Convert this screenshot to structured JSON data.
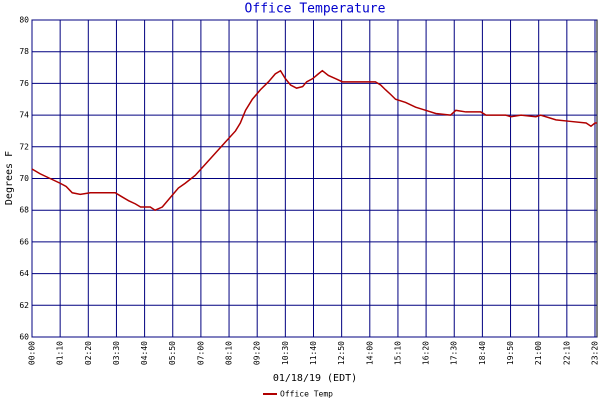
{
  "chart_data": {
    "type": "line",
    "title": "Office Temperature",
    "x_label": "01/18/19 (EDT)",
    "y_label": "Degrees F",
    "x": [
      0,
      20,
      45,
      70,
      85,
      100,
      120,
      145,
      207,
      220,
      240,
      257,
      270,
      294,
      306,
      324,
      344,
      364,
      381,
      406,
      431,
      456,
      481,
      506,
      518,
      531,
      548,
      568,
      588,
      605,
      618,
      630,
      643,
      658,
      673,
      683,
      698,
      712,
      722,
      737,
      755,
      772,
      792,
      854,
      867,
      879,
      892,
      904,
      929,
      954,
      979,
      1004,
      1041,
      1054,
      1079,
      1116,
      1129,
      1178,
      1191,
      1216,
      1253,
      1265,
      1303,
      1340,
      1378,
      1390,
      1400,
      1405
    ],
    "series": [
      {
        "name": "Office Temp",
        "color": "#b00000",
        "values": [
          70.6,
          70.3,
          70.0,
          69.7,
          69.5,
          69.1,
          69.0,
          69.1,
          69.1,
          68.9,
          68.6,
          68.4,
          68.2,
          68.2,
          68.0,
          68.2,
          68.8,
          69.4,
          69.7,
          70.2,
          70.9,
          71.6,
          72.3,
          73.0,
          73.5,
          74.3,
          75.0,
          75.6,
          76.1,
          76.6,
          76.8,
          76.3,
          75.9,
          75.7,
          75.8,
          76.1,
          76.3,
          76.6,
          76.8,
          76.5,
          76.3,
          76.1,
          76.1,
          76.1,
          75.9,
          75.6,
          75.3,
          75.0,
          74.8,
          74.5,
          74.3,
          74.1,
          74.0,
          74.3,
          74.2,
          74.2,
          74.0,
          74.0,
          73.9,
          74.0,
          73.9,
          74.0,
          73.7,
          73.6,
          73.5,
          73.3,
          73.5,
          73.5
        ]
      }
    ],
    "xlim": [
      0,
      1405
    ],
    "ylim": [
      60,
      80
    ],
    "xticks": [
      {
        "value": 0,
        "label": "00:00"
      },
      {
        "value": 70,
        "label": "01:10"
      },
      {
        "value": 140,
        "label": "02:20"
      },
      {
        "value": 210,
        "label": "03:30"
      },
      {
        "value": 280,
        "label": "04:40"
      },
      {
        "value": 350,
        "label": "05:50"
      },
      {
        "value": 420,
        "label": "07:00"
      },
      {
        "value": 490,
        "label": "08:10"
      },
      {
        "value": 560,
        "label": "09:20"
      },
      {
        "value": 630,
        "label": "10:30"
      },
      {
        "value": 700,
        "label": "11:40"
      },
      {
        "value": 770,
        "label": "12:50"
      },
      {
        "value": 840,
        "label": "14:00"
      },
      {
        "value": 910,
        "label": "15:10"
      },
      {
        "value": 980,
        "label": "16:20"
      },
      {
        "value": 1050,
        "label": "17:30"
      },
      {
        "value": 1120,
        "label": "18:40"
      },
      {
        "value": 1190,
        "label": "19:50"
      },
      {
        "value": 1260,
        "label": "21:00"
      },
      {
        "value": 1330,
        "label": "22:10"
      },
      {
        "value": 1400,
        "label": "23:20"
      }
    ],
    "yticks": [
      60,
      62,
      64,
      66,
      68,
      70,
      72,
      74,
      76,
      78,
      80
    ],
    "grid": true,
    "grid_color": "#000080",
    "legend": "bottom"
  }
}
